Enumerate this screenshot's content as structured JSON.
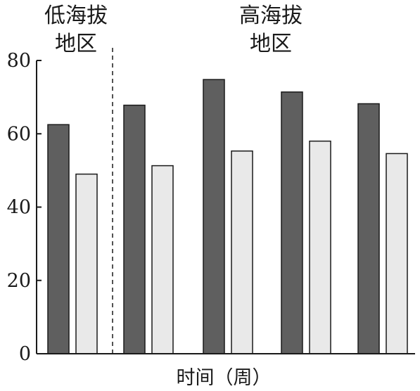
{
  "chart_data": {
    "type": "bar",
    "title": "",
    "xlabel": "时间（周）",
    "ylabel": "",
    "ylim": [
      0,
      80
    ],
    "y_ticks": [
      "0",
      "20",
      "40",
      "60",
      "80"
    ],
    "grid": false,
    "legend": "none",
    "regions": [
      {
        "lines": [
          "低海拔",
          "地区"
        ],
        "groups": [
          0
        ]
      },
      {
        "lines": [
          "高海拔",
          "地区"
        ],
        "groups": [
          1,
          2,
          3,
          4
        ]
      }
    ],
    "categories": [
      "",
      "",
      "",
      "",
      ""
    ],
    "series": [
      {
        "values": [
          62.5,
          67.8,
          74.8,
          71.4,
          68.2
        ],
        "color": "#5f5f5f"
      },
      {
        "values": [
          49.0,
          51.3,
          55.3,
          58.0,
          54.6
        ],
        "color": "#e9e9e9"
      }
    ],
    "colors": {
      "stroke": "#1a1a1a",
      "divider": "#1a1a1a"
    }
  }
}
